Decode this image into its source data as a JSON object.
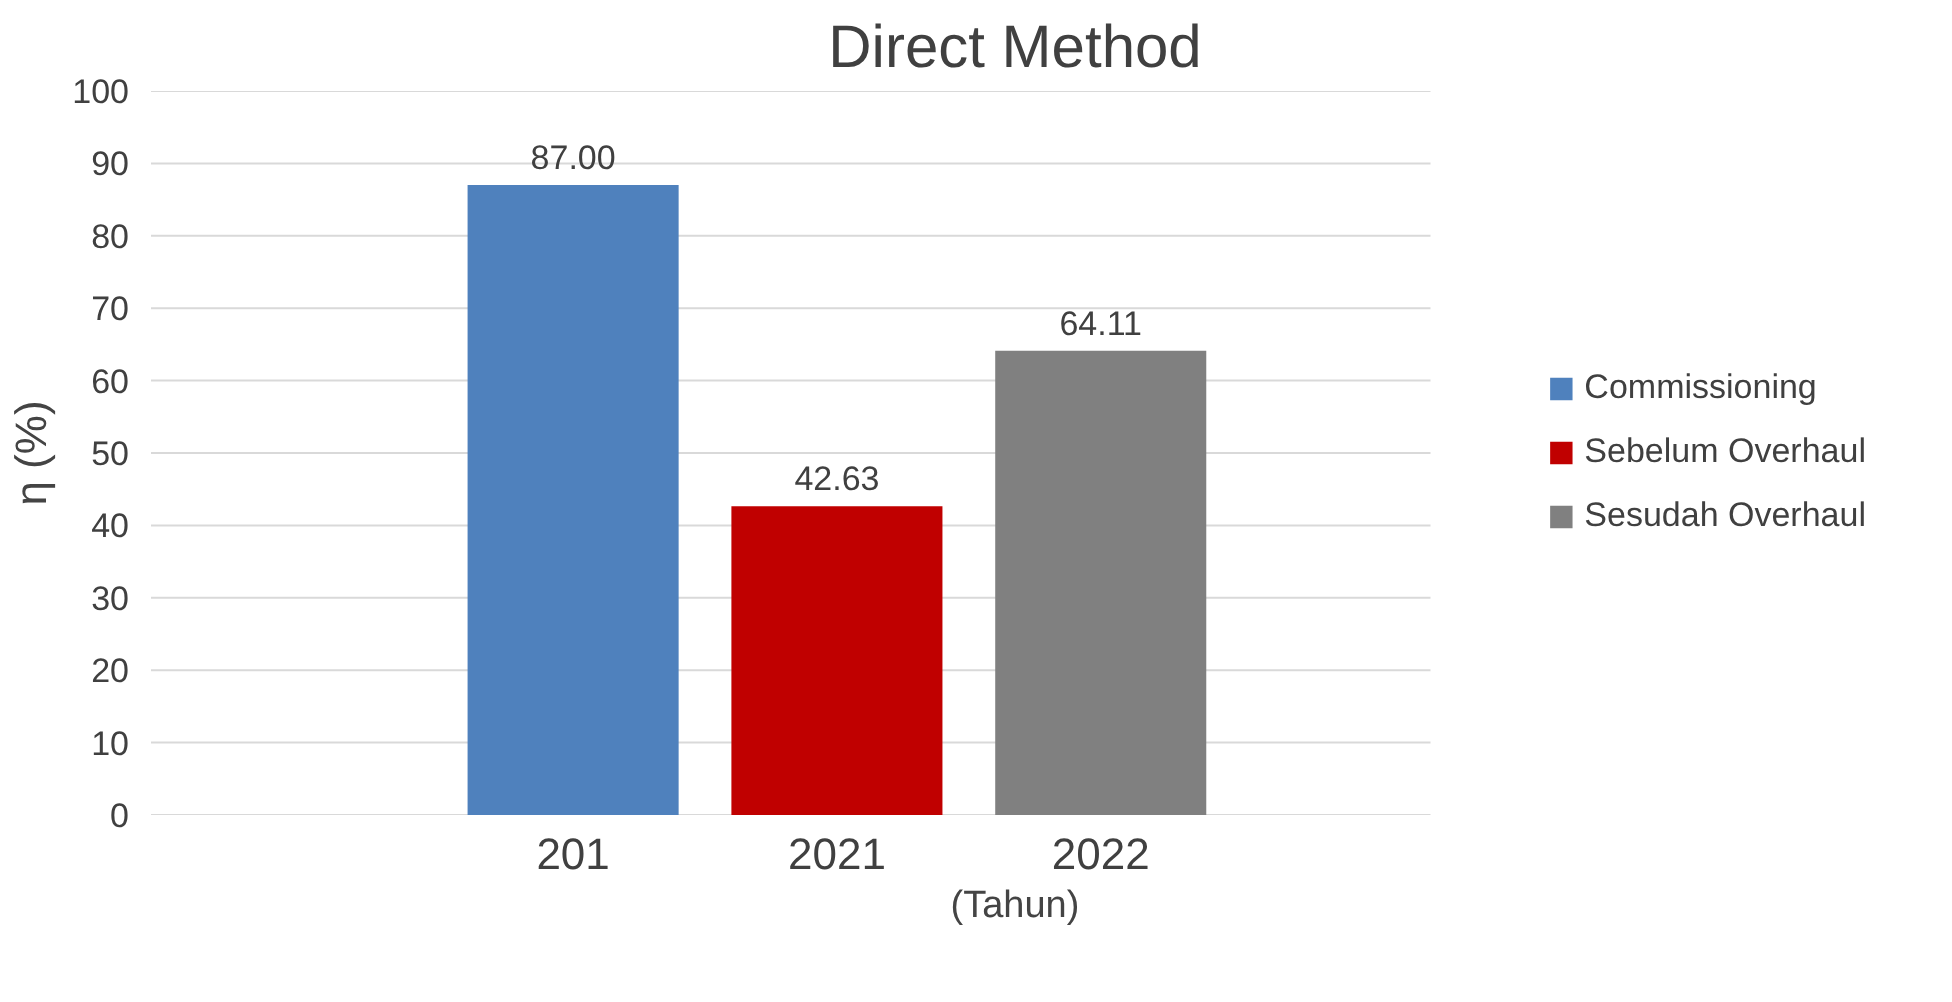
{
  "chart_data": {
    "type": "bar",
    "title": "Direct Method",
    "xlabel": "(Tahun)",
    "ylabel": "η (%)",
    "categories": [
      "201",
      "2021",
      "2022"
    ],
    "series": [
      {
        "name": "Commissioning",
        "color": "#4f81bd",
        "values": [
          87.0,
          null,
          null
        ],
        "value_labels": [
          "87.00",
          null,
          null
        ]
      },
      {
        "name": "Sebelum Overhaul",
        "color": "#c00000",
        "values": [
          null,
          42.63,
          null
        ],
        "value_labels": [
          null,
          "42.63",
          null
        ]
      },
      {
        "name": "Sesudah Overhaul",
        "color": "#808080",
        "values": [
          null,
          null,
          64.11
        ],
        "value_labels": [
          null,
          null,
          "64.11"
        ]
      }
    ],
    "ylim": [
      0,
      100
    ],
    "yticks": [
      0,
      10,
      20,
      30,
      40,
      50,
      60,
      70,
      80,
      90,
      100
    ],
    "grid": "y",
    "legend": "right"
  }
}
